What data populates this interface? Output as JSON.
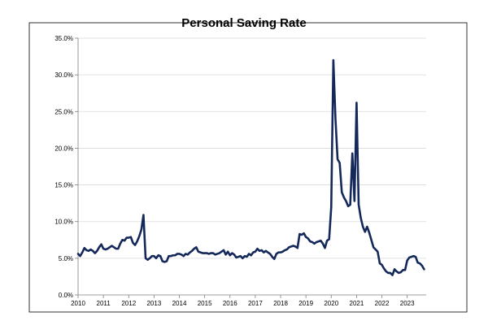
{
  "chart_data": {
    "type": "line",
    "title": "Personal Saving Rate",
    "xlabel": "",
    "ylabel": "",
    "xlim": [
      2010.0,
      2023.75
    ],
    "ylim": [
      0,
      35
    ],
    "y_ticks": [
      "0.0%",
      "5.0%",
      "10.0%",
      "15.0%",
      "20.0%",
      "25.0%",
      "30.0%",
      "35.0%"
    ],
    "x_ticks": [
      "2010",
      "2011",
      "2012",
      "2013",
      "2014",
      "2015",
      "2016",
      "2017",
      "2018",
      "2019",
      "2020",
      "2021",
      "2022",
      "2023"
    ],
    "grid": "horizontal",
    "legend": "none",
    "colors": {
      "line": "#14285a",
      "grid": "#d9d9d9",
      "axis": "#7f7f7f",
      "border": "#000000"
    },
    "series": [
      {
        "x": [
          2010.0,
          2010.083,
          2010.167,
          2010.25,
          2010.333,
          2010.417,
          2010.5,
          2010.583,
          2010.667,
          2010.75,
          2010.833,
          2010.917,
          2011.0,
          2011.083,
          2011.167,
          2011.25,
          2011.333,
          2011.417,
          2011.5,
          2011.583,
          2011.667,
          2011.75,
          2011.833,
          2011.917,
          2012.0,
          2012.083,
          2012.167,
          2012.25,
          2012.333,
          2012.417,
          2012.5,
          2012.583,
          2012.667,
          2012.75,
          2012.833,
          2012.917,
          2013.0,
          2013.083,
          2013.167,
          2013.25,
          2013.333,
          2013.417,
          2013.5,
          2013.583,
          2013.667,
          2013.75,
          2013.833,
          2013.917,
          2014.0,
          2014.083,
          2014.167,
          2014.25,
          2014.333,
          2014.417,
          2014.5,
          2014.583,
          2014.667,
          2014.75,
          2014.833,
          2014.917,
          2015.0,
          2015.083,
          2015.167,
          2015.25,
          2015.333,
          2015.417,
          2015.5,
          2015.583,
          2015.667,
          2015.75,
          2015.833,
          2015.917,
          2016.0,
          2016.083,
          2016.167,
          2016.25,
          2016.333,
          2016.417,
          2016.5,
          2016.583,
          2016.667,
          2016.75,
          2016.833,
          2016.917,
          2017.0,
          2017.083,
          2017.167,
          2017.25,
          2017.333,
          2017.417,
          2017.5,
          2017.583,
          2017.667,
          2017.75,
          2017.833,
          2017.917,
          2018.0,
          2018.083,
          2018.167,
          2018.25,
          2018.333,
          2018.417,
          2018.5,
          2018.583,
          2018.667,
          2018.75,
          2018.833,
          2018.917,
          2019.0,
          2019.083,
          2019.167,
          2019.25,
          2019.333,
          2019.417,
          2019.5,
          2019.583,
          2019.667,
          2019.75,
          2019.833,
          2019.917,
          2020.0,
          2020.083,
          2020.167,
          2020.25,
          2020.333,
          2020.417,
          2020.5,
          2020.583,
          2020.667,
          2020.75,
          2020.833,
          2020.917,
          2021.0,
          2021.083,
          2021.167,
          2021.25,
          2021.333,
          2021.417,
          2021.5,
          2021.583,
          2021.667,
          2021.75,
          2021.833,
          2021.917,
          2022.0,
          2022.083,
          2022.167,
          2022.25,
          2022.333,
          2022.417,
          2022.5,
          2022.583,
          2022.667,
          2022.75,
          2022.833,
          2022.917,
          2023.0,
          2023.083,
          2023.167,
          2023.25,
          2023.333,
          2023.417,
          2023.5,
          2023.583,
          2023.667
        ],
        "y": [
          5.6,
          5.3,
          5.8,
          6.4,
          6.1,
          6.0,
          6.2,
          6.0,
          5.7,
          6.0,
          6.5,
          6.9,
          6.3,
          6.2,
          6.3,
          6.5,
          6.7,
          6.5,
          6.3,
          6.3,
          7.0,
          7.5,
          7.4,
          7.8,
          7.8,
          7.9,
          7.1,
          6.8,
          7.3,
          8.0,
          8.9,
          10.9,
          5.0,
          4.8,
          5.0,
          5.3,
          5.3,
          5.0,
          5.4,
          5.3,
          4.6,
          4.5,
          4.6,
          5.3,
          5.3,
          5.4,
          5.4,
          5.6,
          5.6,
          5.5,
          5.3,
          5.6,
          5.5,
          5.8,
          6.0,
          6.3,
          6.5,
          5.9,
          5.8,
          5.7,
          5.7,
          5.7,
          5.6,
          5.7,
          5.7,
          5.5,
          5.6,
          5.7,
          5.9,
          6.1,
          5.5,
          5.9,
          5.4,
          5.7,
          5.5,
          5.1,
          5.2,
          5.3,
          5.0,
          5.3,
          5.2,
          5.6,
          5.4,
          5.8,
          5.9,
          6.3,
          6.0,
          6.1,
          5.8,
          6.0,
          5.8,
          5.6,
          5.2,
          4.9,
          5.6,
          5.8,
          5.8,
          5.9,
          6.1,
          6.2,
          6.5,
          6.6,
          6.7,
          6.6,
          6.4,
          8.3,
          8.2,
          8.4,
          7.9,
          7.7,
          7.3,
          7.2,
          7.0,
          7.2,
          7.3,
          7.4,
          7.0,
          6.4,
          7.4,
          7.6,
          12.0,
          32.0,
          24.0,
          18.5,
          18.0,
          14.0,
          13.3,
          12.8,
          12.1,
          12.3,
          19.3,
          12.8,
          26.2,
          12.3,
          10.5,
          9.3,
          8.6,
          9.3,
          8.5,
          7.5,
          6.5,
          6.2,
          5.9,
          4.3,
          4.1,
          3.6,
          3.2,
          3.0,
          3.0,
          2.7,
          3.5,
          3.2,
          3.0,
          3.1,
          3.4,
          3.4,
          4.7,
          5.1,
          5.2,
          5.3,
          5.2,
          4.4,
          4.3,
          4.0,
          3.5
        ]
      }
    ]
  }
}
